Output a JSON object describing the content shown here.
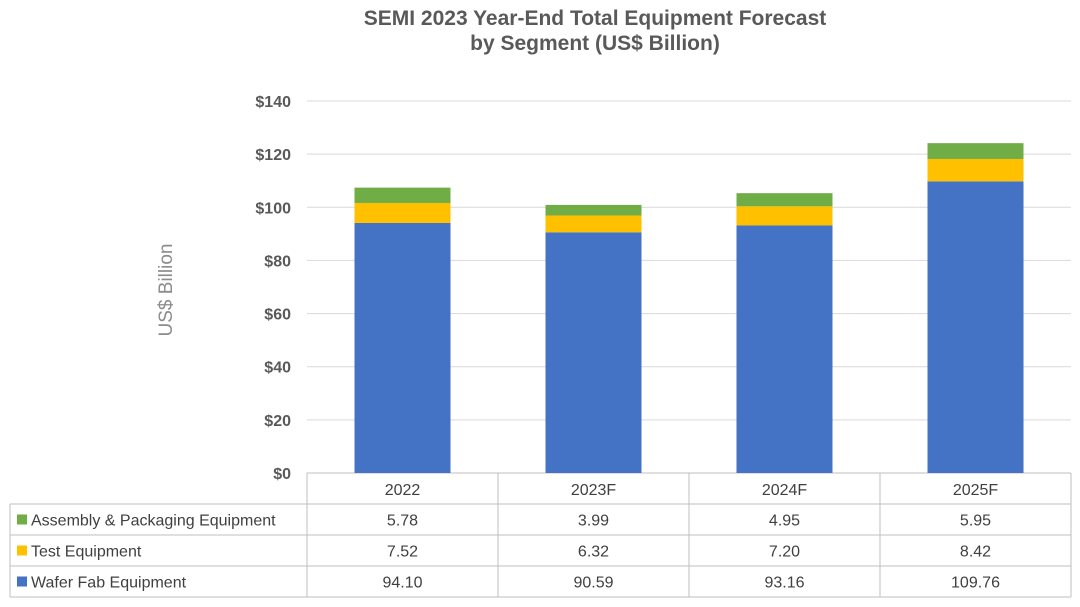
{
  "chart_data": {
    "type": "bar",
    "stacked": true,
    "title_lines": [
      "SEMI 2023 Year-End Total Equipment Forecast",
      "by Segment (US$ Billion)"
    ],
    "ylabel": "US$ Billion",
    "ylim": [
      0,
      140
    ],
    "yticks": [
      0,
      20,
      40,
      60,
      80,
      100,
      120,
      140
    ],
    "ytick_labels": [
      "$0",
      "$20",
      "$40",
      "$60",
      "$80",
      "$100",
      "$120",
      "$140"
    ],
    "categories": [
      "2022",
      "2023F",
      "2024F",
      "2025F"
    ],
    "grid": true,
    "data_table": true,
    "series": [
      {
        "name": "Wafer Fab Equipment",
        "color": "#4472c4",
        "values": [
          94.1,
          90.59,
          93.16,
          109.76
        ],
        "labels": [
          "94.10",
          "90.59",
          "93.16",
          "109.76"
        ]
      },
      {
        "name": "Test Equipment",
        "color": "#ffc000",
        "values": [
          7.52,
          6.32,
          7.2,
          8.42
        ],
        "labels": [
          "7.52",
          "6.32",
          "7.20",
          "8.42"
        ]
      },
      {
        "name": "Assembly & Packaging Equipment",
        "color": "#70ad47",
        "values": [
          5.78,
          3.99,
          4.95,
          5.95
        ],
        "labels": [
          "5.78",
          "3.99",
          "4.95",
          "5.95"
        ]
      }
    ]
  }
}
